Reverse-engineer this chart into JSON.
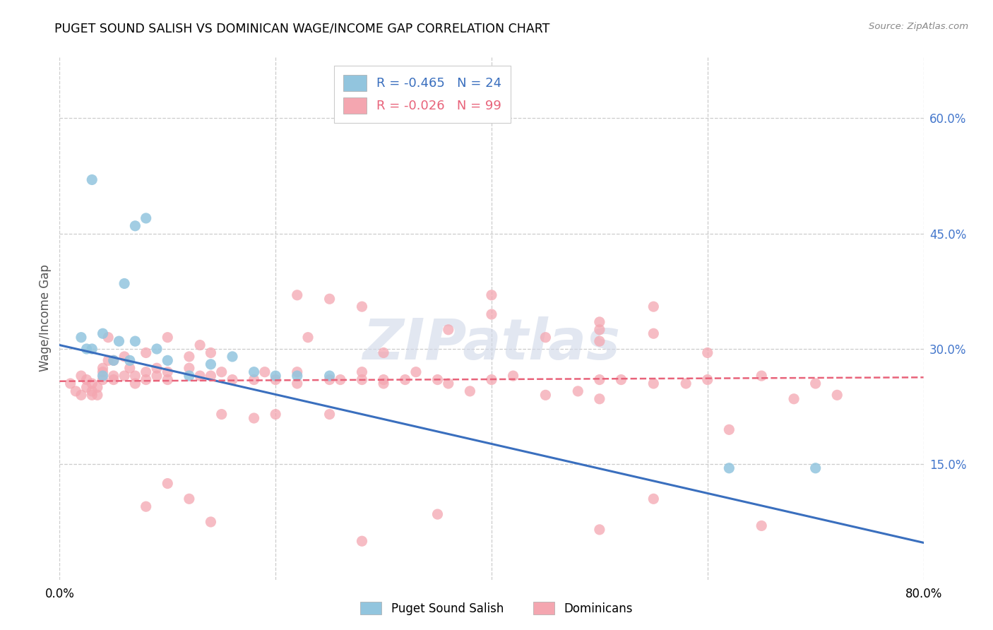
{
  "title": "PUGET SOUND SALISH VS DOMINICAN WAGE/INCOME GAP CORRELATION CHART",
  "source": "Source: ZipAtlas.com",
  "ylabel": "Wage/Income Gap",
  "yticks_right": [
    "60.0%",
    "45.0%",
    "30.0%",
    "15.0%"
  ],
  "ytick_values": [
    0.6,
    0.45,
    0.3,
    0.15
  ],
  "xlim": [
    0.0,
    0.8
  ],
  "ylim": [
    0.0,
    0.68
  ],
  "legend_r1": "R = -0.465",
  "legend_n1": "N = 24",
  "legend_r2": "R = -0.026",
  "legend_n2": "N = 99",
  "blue_color": "#92c5de",
  "pink_color": "#f4a6b0",
  "line_blue": "#3a6fbe",
  "line_pink": "#e8637a",
  "watermark": "ZIPatlas",
  "blue_line_x0": 0.0,
  "blue_line_y0": 0.305,
  "blue_line_x1": 0.8,
  "blue_line_y1": 0.048,
  "pink_line_x0": 0.0,
  "pink_line_y0": 0.258,
  "pink_line_x1": 0.8,
  "pink_line_y1": 0.263,
  "blue_scatter_x": [
    0.02,
    0.025,
    0.03,
    0.04,
    0.04,
    0.05,
    0.055,
    0.06,
    0.065,
    0.07,
    0.08,
    0.09,
    0.1,
    0.12,
    0.14,
    0.16,
    0.18,
    0.2,
    0.22,
    0.25,
    0.62,
    0.7,
    0.03,
    0.07
  ],
  "blue_scatter_y": [
    0.315,
    0.3,
    0.3,
    0.265,
    0.32,
    0.285,
    0.31,
    0.385,
    0.285,
    0.31,
    0.47,
    0.3,
    0.285,
    0.265,
    0.28,
    0.29,
    0.27,
    0.265,
    0.265,
    0.265,
    0.145,
    0.145,
    0.52,
    0.46
  ],
  "pink_scatter_x": [
    0.01,
    0.015,
    0.02,
    0.02,
    0.025,
    0.025,
    0.03,
    0.03,
    0.03,
    0.035,
    0.035,
    0.04,
    0.04,
    0.04,
    0.045,
    0.045,
    0.05,
    0.05,
    0.05,
    0.06,
    0.06,
    0.065,
    0.07,
    0.07,
    0.08,
    0.08,
    0.08,
    0.09,
    0.09,
    0.1,
    0.1,
    0.1,
    0.12,
    0.12,
    0.13,
    0.13,
    0.14,
    0.14,
    0.15,
    0.15,
    0.16,
    0.18,
    0.18,
    0.19,
    0.2,
    0.2,
    0.22,
    0.22,
    0.23,
    0.25,
    0.25,
    0.26,
    0.28,
    0.28,
    0.3,
    0.3,
    0.32,
    0.33,
    0.35,
    0.36,
    0.38,
    0.4,
    0.42,
    0.45,
    0.48,
    0.5,
    0.5,
    0.52,
    0.55,
    0.58,
    0.6,
    0.62,
    0.65,
    0.68,
    0.7,
    0.72,
    0.36,
    0.4,
    0.45,
    0.5,
    0.55,
    0.5,
    0.55,
    0.6,
    0.22,
    0.25,
    0.28,
    0.3,
    0.08,
    0.1,
    0.12,
    0.14,
    0.28,
    0.35,
    0.55,
    0.5,
    0.65,
    0.5,
    0.4
  ],
  "pink_scatter_y": [
    0.255,
    0.245,
    0.265,
    0.24,
    0.26,
    0.25,
    0.24,
    0.245,
    0.255,
    0.25,
    0.24,
    0.27,
    0.26,
    0.275,
    0.315,
    0.285,
    0.265,
    0.26,
    0.285,
    0.265,
    0.29,
    0.275,
    0.265,
    0.255,
    0.27,
    0.26,
    0.295,
    0.275,
    0.265,
    0.27,
    0.26,
    0.315,
    0.29,
    0.275,
    0.305,
    0.265,
    0.265,
    0.295,
    0.27,
    0.215,
    0.26,
    0.26,
    0.21,
    0.27,
    0.26,
    0.215,
    0.27,
    0.255,
    0.315,
    0.26,
    0.215,
    0.26,
    0.27,
    0.26,
    0.255,
    0.26,
    0.26,
    0.27,
    0.26,
    0.255,
    0.245,
    0.26,
    0.265,
    0.24,
    0.245,
    0.26,
    0.235,
    0.26,
    0.255,
    0.255,
    0.26,
    0.195,
    0.265,
    0.235,
    0.255,
    0.24,
    0.325,
    0.345,
    0.315,
    0.31,
    0.32,
    0.335,
    0.355,
    0.295,
    0.37,
    0.365,
    0.355,
    0.295,
    0.095,
    0.125,
    0.105,
    0.075,
    0.05,
    0.085,
    0.105,
    0.065,
    0.07,
    0.325,
    0.37
  ]
}
